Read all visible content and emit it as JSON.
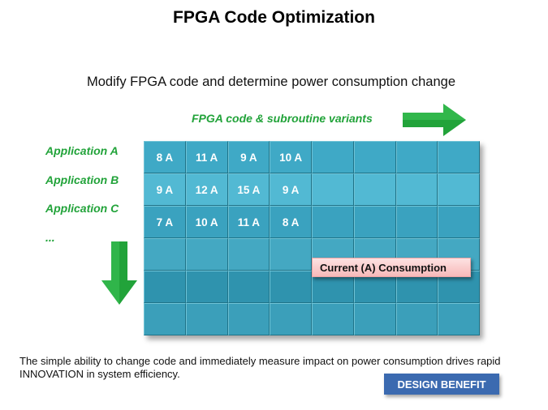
{
  "title": "FPGA Code Optimization",
  "subtitle": "Modify FPGA code and determine power consumption change",
  "variants_label": "FPGA code & subroutine variants",
  "applications": [
    "Application A",
    "Application B",
    "Application C",
    "..."
  ],
  "grid": {
    "rows": [
      [
        "8 A",
        "11 A",
        "9 A",
        "10 A",
        "",
        "",
        "",
        ""
      ],
      [
        "9 A",
        "12 A",
        "15 A",
        "9 A",
        "",
        "",
        "",
        ""
      ],
      [
        "7 A",
        "10 A",
        "11 A",
        "8 A",
        "",
        "",
        "",
        ""
      ],
      [
        "",
        "",
        "",
        "",
        "",
        "",
        "",
        ""
      ],
      [
        "",
        "",
        "",
        "",
        "",
        "",
        "",
        ""
      ],
      [
        "",
        "",
        "",
        "",
        "",
        "",
        "",
        ""
      ]
    ]
  },
  "callout": "Current (A) Consumption",
  "bottom_text": "The simple  ability to change code and immediately  measure impact on power consumption drives rapid INNOVATION  in system efficiency.",
  "badge": "DESIGN BENEFIT",
  "colors": {
    "arrow": "#22a33a",
    "grid": "#2a8ea8",
    "badge": "#3b6ab0",
    "callout": "#f7b9b9"
  }
}
